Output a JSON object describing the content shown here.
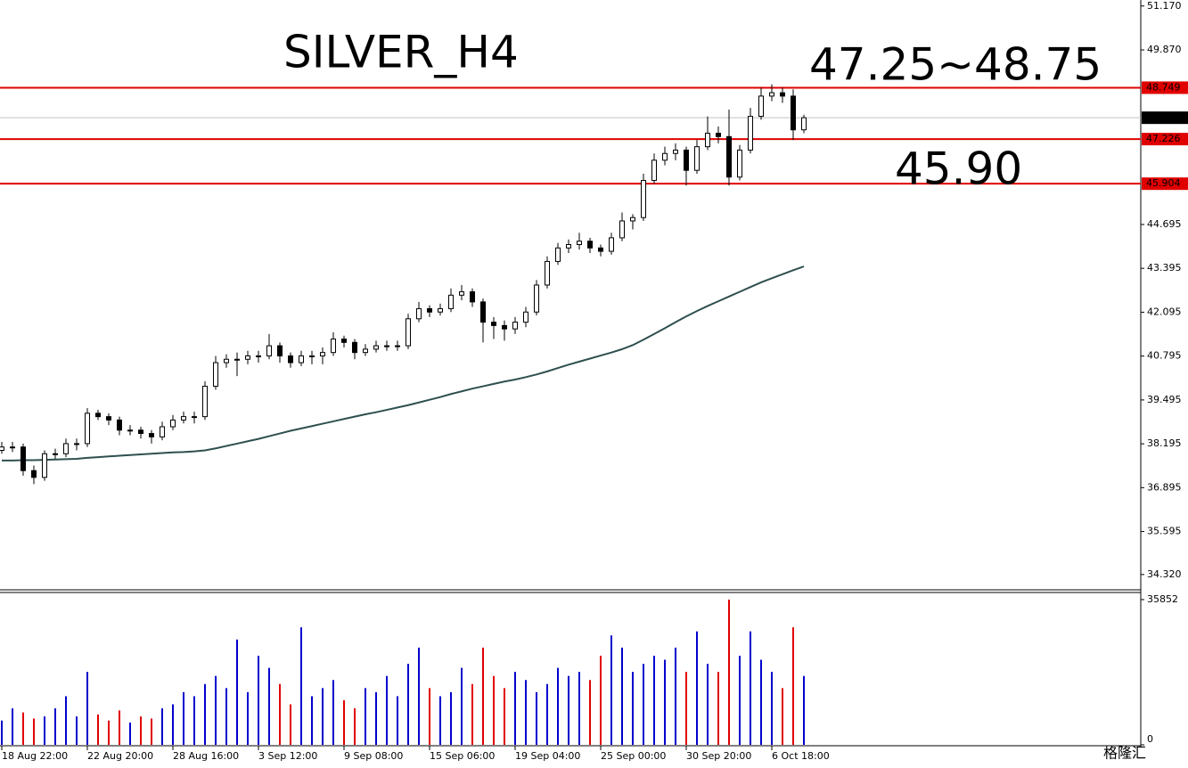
{
  "chart_data": {
    "type": "candlestick",
    "title": "SILVER_H4",
    "annotations": [
      {
        "text": "47.25~48.75",
        "color": "#0a0a80"
      },
      {
        "text": "45.90",
        "color": "#ff4500"
      }
    ],
    "categories": [
      "18 Aug 22:00",
      null,
      null,
      null,
      null,
      null,
      null,
      null,
      "22 Aug 20:00",
      null,
      null,
      null,
      null,
      null,
      null,
      null,
      "28 Aug 16:00",
      null,
      null,
      null,
      null,
      null,
      null,
      null,
      "3 Sep 12:00",
      null,
      null,
      null,
      null,
      null,
      null,
      null,
      "9 Sep 08:00",
      null,
      null,
      null,
      null,
      null,
      null,
      null,
      "15 Sep 06:00",
      null,
      null,
      null,
      null,
      null,
      null,
      null,
      "19 Sep 04:00",
      null,
      null,
      null,
      null,
      null,
      null,
      null,
      "25 Sep 00:00",
      null,
      null,
      null,
      null,
      null,
      null,
      null,
      "30 Sep 20:00",
      null,
      null,
      null,
      null,
      null,
      null,
      null,
      "6 Oct 18:00",
      null,
      null,
      null
    ],
    "ohlc": [
      [
        38.0,
        38.25,
        37.9,
        38.1
      ],
      [
        38.1,
        38.25,
        37.95,
        38.1
      ],
      [
        38.1,
        38.2,
        37.25,
        37.4
      ],
      [
        37.4,
        37.55,
        37.0,
        37.2
      ],
      [
        37.2,
        38.0,
        37.1,
        37.9
      ],
      [
        37.9,
        38.05,
        37.75,
        37.9
      ],
      [
        37.9,
        38.35,
        37.8,
        38.2
      ],
      [
        38.2,
        38.35,
        38.0,
        38.2
      ],
      [
        38.2,
        39.25,
        38.1,
        39.1
      ],
      [
        39.1,
        39.2,
        38.9,
        39.0
      ],
      [
        39.0,
        39.1,
        38.75,
        38.9
      ],
      [
        38.9,
        39.0,
        38.45,
        38.6
      ],
      [
        38.6,
        38.75,
        38.45,
        38.6
      ],
      [
        38.6,
        38.7,
        38.35,
        38.5
      ],
      [
        38.5,
        38.6,
        38.2,
        38.4
      ],
      [
        38.4,
        38.85,
        38.3,
        38.7
      ],
      [
        38.7,
        39.05,
        38.6,
        38.9
      ],
      [
        38.9,
        39.15,
        38.8,
        39.0
      ],
      [
        39.0,
        39.15,
        38.8,
        39.0
      ],
      [
        39.0,
        40.05,
        38.9,
        39.9
      ],
      [
        39.9,
        40.8,
        39.8,
        40.6
      ],
      [
        40.6,
        40.85,
        40.45,
        40.7
      ],
      [
        40.7,
        40.9,
        40.2,
        40.7
      ],
      [
        40.7,
        40.95,
        40.55,
        40.8
      ],
      [
        40.8,
        40.95,
        40.6,
        40.8
      ],
      [
        40.8,
        41.45,
        40.7,
        41.1
      ],
      [
        41.1,
        41.2,
        40.6,
        40.8
      ],
      [
        40.8,
        40.9,
        40.45,
        40.6
      ],
      [
        40.6,
        40.95,
        40.5,
        40.8
      ],
      [
        40.8,
        40.95,
        40.55,
        40.8
      ],
      [
        40.8,
        41.05,
        40.55,
        40.9
      ],
      [
        40.9,
        41.5,
        40.8,
        41.3
      ],
      [
        41.3,
        41.4,
        41.05,
        41.2
      ],
      [
        41.2,
        41.3,
        40.7,
        40.9
      ],
      [
        40.9,
        41.15,
        40.8,
        41.0
      ],
      [
        41.0,
        41.25,
        40.9,
        41.1
      ],
      [
        41.1,
        41.25,
        40.95,
        41.1
      ],
      [
        41.1,
        41.25,
        40.95,
        41.1
      ],
      [
        41.1,
        42.05,
        41.0,
        41.9
      ],
      [
        41.9,
        42.4,
        41.8,
        42.2
      ],
      [
        42.2,
        42.3,
        41.95,
        42.1
      ],
      [
        42.1,
        42.35,
        42.0,
        42.2
      ],
      [
        42.2,
        42.8,
        42.1,
        42.6
      ],
      [
        42.6,
        42.9,
        42.45,
        42.7
      ],
      [
        42.7,
        42.8,
        42.25,
        42.4
      ],
      [
        42.4,
        42.5,
        41.2,
        41.8
      ],
      [
        41.8,
        41.95,
        41.3,
        41.7
      ],
      [
        41.7,
        41.85,
        41.25,
        41.6
      ],
      [
        41.6,
        41.95,
        41.45,
        41.8
      ],
      [
        41.8,
        42.25,
        41.65,
        42.1
      ],
      [
        42.1,
        43.05,
        42.0,
        42.9
      ],
      [
        42.9,
        43.75,
        42.8,
        43.6
      ],
      [
        43.6,
        44.15,
        43.5,
        44.0
      ],
      [
        44.0,
        44.25,
        43.85,
        44.1
      ],
      [
        44.1,
        44.45,
        43.95,
        44.2
      ],
      [
        44.2,
        44.3,
        43.85,
        44.0
      ],
      [
        44.0,
        44.1,
        43.75,
        43.9
      ],
      [
        43.9,
        44.45,
        43.8,
        44.3
      ],
      [
        44.3,
        45.05,
        44.2,
        44.8
      ],
      [
        44.8,
        45.0,
        44.55,
        44.9
      ],
      [
        44.9,
        46.2,
        44.8,
        46.0
      ],
      [
        46.0,
        46.8,
        45.9,
        46.6
      ],
      [
        46.6,
        47.0,
        46.45,
        46.8
      ],
      [
        46.8,
        47.1,
        46.6,
        46.9
      ],
      [
        46.9,
        47.0,
        45.85,
        46.3
      ],
      [
        46.3,
        47.2,
        46.2,
        47.0
      ],
      [
        47.0,
        47.9,
        46.9,
        47.4
      ],
      [
        47.4,
        47.6,
        47.1,
        47.3
      ],
      [
        47.3,
        48.1,
        45.85,
        46.1
      ],
      [
        46.1,
        47.05,
        46.0,
        46.9
      ],
      [
        46.9,
        48.15,
        46.8,
        47.9
      ],
      [
        47.9,
        48.75,
        47.8,
        48.5
      ],
      [
        48.5,
        48.85,
        48.35,
        48.6
      ],
      [
        48.6,
        48.75,
        48.3,
        48.5
      ],
      [
        48.5,
        48.7,
        47.2,
        47.5
      ],
      [
        47.5,
        47.95,
        47.4,
        47.86
      ]
    ],
    "ma": {
      "color": "#2f4f4f",
      "values": [
        37.7,
        37.7,
        37.71,
        37.71,
        37.72,
        37.73,
        37.74,
        37.75,
        37.78,
        37.8,
        37.82,
        37.84,
        37.86,
        37.88,
        37.9,
        37.92,
        37.94,
        37.95,
        37.97,
        38.0,
        38.06,
        38.13,
        38.2,
        38.27,
        38.34,
        38.42,
        38.5,
        38.58,
        38.65,
        38.72,
        38.79,
        38.86,
        38.93,
        39.0,
        39.07,
        39.13,
        39.2,
        39.27,
        39.34,
        39.42,
        39.5,
        39.58,
        39.67,
        39.75,
        39.83,
        39.9,
        39.97,
        40.04,
        40.1,
        40.17,
        40.25,
        40.34,
        40.44,
        40.54,
        40.63,
        40.72,
        40.81,
        40.9,
        41.0,
        41.12,
        41.28,
        41.45,
        41.62,
        41.8,
        41.97,
        42.13,
        42.28,
        42.42,
        42.56,
        42.7,
        42.84,
        42.98,
        43.1,
        43.22,
        43.34,
        43.45
      ]
    },
    "volume": {
      "up_color": "#0000cd",
      "down_color": "#e00000",
      "values": [
        6000,
        9000,
        8000,
        6500,
        7000,
        9000,
        12000,
        7000,
        18000,
        7500,
        6000,
        8500,
        5500,
        7000,
        6500,
        9000,
        10000,
        13000,
        12000,
        15000,
        17000,
        14000,
        26000,
        13000,
        22000,
        19000,
        15000,
        10000,
        29000,
        12000,
        14000,
        16000,
        11000,
        9000,
        14000,
        13000,
        17000,
        12000,
        20000,
        24000,
        14000,
        12000,
        13000,
        19000,
        15000,
        24000,
        17000,
        14000,
        18000,
        16000,
        13000,
        15000,
        19000,
        17000,
        18000,
        16000,
        22000,
        27000,
        24000,
        18000,
        20000,
        22000,
        21000,
        24000,
        18000,
        28000,
        20000,
        18000,
        35852,
        22000,
        28000,
        21000,
        18000,
        14000,
        29000,
        17000
      ],
      "ylim": [
        0,
        35852
      ],
      "yticks": [
        35852,
        0
      ]
    },
    "up_color": "#ffffff",
    "down_color": "#000000",
    "ylim": [
      33.92,
      51.19
    ],
    "yticks": [
      {
        "value": 51.17,
        "label": "51.170"
      },
      {
        "value": 49.87,
        "label": "49.870"
      },
      44.695,
      43.395,
      42.095,
      40.795,
      39.495,
      38.195,
      36.895,
      35.595,
      {
        "value": 34.32,
        "label": "34.320"
      }
    ],
    "levels": [
      {
        "value": 48.749,
        "color": "#e00000"
      },
      {
        "value": 47.226,
        "color": "#e00000"
      },
      {
        "value": 45.904,
        "color": "#e00000"
      }
    ],
    "current_price": {
      "value": 47.859,
      "color": "#c0c0c0"
    },
    "watermark": "格隆汇"
  }
}
